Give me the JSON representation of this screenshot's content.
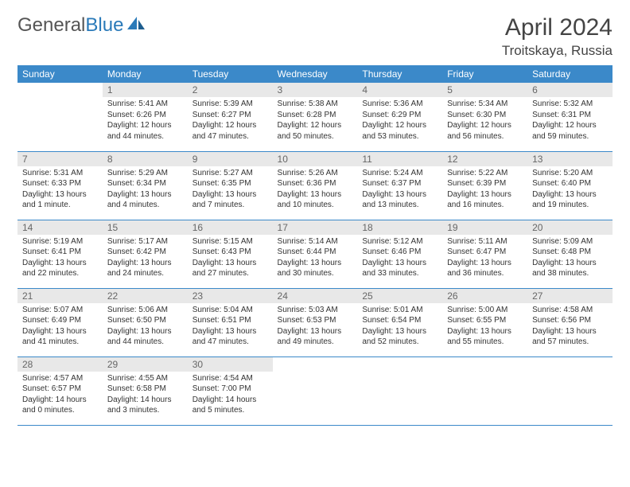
{
  "brand": {
    "part1": "General",
    "part2": "Blue"
  },
  "title": "April 2024",
  "location": "Troitskaya, Russia",
  "colors": {
    "header_bg": "#3b89c9",
    "header_text": "#ffffff",
    "daynum_bg": "#e8e8e8",
    "daynum_text": "#666666",
    "body_text": "#333333",
    "border": "#3b89c9",
    "brand_gray": "#555555",
    "brand_blue": "#2a7ab9"
  },
  "day_headers": [
    "Sunday",
    "Monday",
    "Tuesday",
    "Wednesday",
    "Thursday",
    "Friday",
    "Saturday"
  ],
  "weeks": [
    [
      null,
      {
        "n": "1",
        "sr": "Sunrise: 5:41 AM",
        "ss": "Sunset: 6:26 PM",
        "d1": "Daylight: 12 hours",
        "d2": "and 44 minutes."
      },
      {
        "n": "2",
        "sr": "Sunrise: 5:39 AM",
        "ss": "Sunset: 6:27 PM",
        "d1": "Daylight: 12 hours",
        "d2": "and 47 minutes."
      },
      {
        "n": "3",
        "sr": "Sunrise: 5:38 AM",
        "ss": "Sunset: 6:28 PM",
        "d1": "Daylight: 12 hours",
        "d2": "and 50 minutes."
      },
      {
        "n": "4",
        "sr": "Sunrise: 5:36 AM",
        "ss": "Sunset: 6:29 PM",
        "d1": "Daylight: 12 hours",
        "d2": "and 53 minutes."
      },
      {
        "n": "5",
        "sr": "Sunrise: 5:34 AM",
        "ss": "Sunset: 6:30 PM",
        "d1": "Daylight: 12 hours",
        "d2": "and 56 minutes."
      },
      {
        "n": "6",
        "sr": "Sunrise: 5:32 AM",
        "ss": "Sunset: 6:31 PM",
        "d1": "Daylight: 12 hours",
        "d2": "and 59 minutes."
      }
    ],
    [
      {
        "n": "7",
        "sr": "Sunrise: 5:31 AM",
        "ss": "Sunset: 6:33 PM",
        "d1": "Daylight: 13 hours",
        "d2": "and 1 minute."
      },
      {
        "n": "8",
        "sr": "Sunrise: 5:29 AM",
        "ss": "Sunset: 6:34 PM",
        "d1": "Daylight: 13 hours",
        "d2": "and 4 minutes."
      },
      {
        "n": "9",
        "sr": "Sunrise: 5:27 AM",
        "ss": "Sunset: 6:35 PM",
        "d1": "Daylight: 13 hours",
        "d2": "and 7 minutes."
      },
      {
        "n": "10",
        "sr": "Sunrise: 5:26 AM",
        "ss": "Sunset: 6:36 PM",
        "d1": "Daylight: 13 hours",
        "d2": "and 10 minutes."
      },
      {
        "n": "11",
        "sr": "Sunrise: 5:24 AM",
        "ss": "Sunset: 6:37 PM",
        "d1": "Daylight: 13 hours",
        "d2": "and 13 minutes."
      },
      {
        "n": "12",
        "sr": "Sunrise: 5:22 AM",
        "ss": "Sunset: 6:39 PM",
        "d1": "Daylight: 13 hours",
        "d2": "and 16 minutes."
      },
      {
        "n": "13",
        "sr": "Sunrise: 5:20 AM",
        "ss": "Sunset: 6:40 PM",
        "d1": "Daylight: 13 hours",
        "d2": "and 19 minutes."
      }
    ],
    [
      {
        "n": "14",
        "sr": "Sunrise: 5:19 AM",
        "ss": "Sunset: 6:41 PM",
        "d1": "Daylight: 13 hours",
        "d2": "and 22 minutes."
      },
      {
        "n": "15",
        "sr": "Sunrise: 5:17 AM",
        "ss": "Sunset: 6:42 PM",
        "d1": "Daylight: 13 hours",
        "d2": "and 24 minutes."
      },
      {
        "n": "16",
        "sr": "Sunrise: 5:15 AM",
        "ss": "Sunset: 6:43 PM",
        "d1": "Daylight: 13 hours",
        "d2": "and 27 minutes."
      },
      {
        "n": "17",
        "sr": "Sunrise: 5:14 AM",
        "ss": "Sunset: 6:44 PM",
        "d1": "Daylight: 13 hours",
        "d2": "and 30 minutes."
      },
      {
        "n": "18",
        "sr": "Sunrise: 5:12 AM",
        "ss": "Sunset: 6:46 PM",
        "d1": "Daylight: 13 hours",
        "d2": "and 33 minutes."
      },
      {
        "n": "19",
        "sr": "Sunrise: 5:11 AM",
        "ss": "Sunset: 6:47 PM",
        "d1": "Daylight: 13 hours",
        "d2": "and 36 minutes."
      },
      {
        "n": "20",
        "sr": "Sunrise: 5:09 AM",
        "ss": "Sunset: 6:48 PM",
        "d1": "Daylight: 13 hours",
        "d2": "and 38 minutes."
      }
    ],
    [
      {
        "n": "21",
        "sr": "Sunrise: 5:07 AM",
        "ss": "Sunset: 6:49 PM",
        "d1": "Daylight: 13 hours",
        "d2": "and 41 minutes."
      },
      {
        "n": "22",
        "sr": "Sunrise: 5:06 AM",
        "ss": "Sunset: 6:50 PM",
        "d1": "Daylight: 13 hours",
        "d2": "and 44 minutes."
      },
      {
        "n": "23",
        "sr": "Sunrise: 5:04 AM",
        "ss": "Sunset: 6:51 PM",
        "d1": "Daylight: 13 hours",
        "d2": "and 47 minutes."
      },
      {
        "n": "24",
        "sr": "Sunrise: 5:03 AM",
        "ss": "Sunset: 6:53 PM",
        "d1": "Daylight: 13 hours",
        "d2": "and 49 minutes."
      },
      {
        "n": "25",
        "sr": "Sunrise: 5:01 AM",
        "ss": "Sunset: 6:54 PM",
        "d1": "Daylight: 13 hours",
        "d2": "and 52 minutes."
      },
      {
        "n": "26",
        "sr": "Sunrise: 5:00 AM",
        "ss": "Sunset: 6:55 PM",
        "d1": "Daylight: 13 hours",
        "d2": "and 55 minutes."
      },
      {
        "n": "27",
        "sr": "Sunrise: 4:58 AM",
        "ss": "Sunset: 6:56 PM",
        "d1": "Daylight: 13 hours",
        "d2": "and 57 minutes."
      }
    ],
    [
      {
        "n": "28",
        "sr": "Sunrise: 4:57 AM",
        "ss": "Sunset: 6:57 PM",
        "d1": "Daylight: 14 hours",
        "d2": "and 0 minutes."
      },
      {
        "n": "29",
        "sr": "Sunrise: 4:55 AM",
        "ss": "Sunset: 6:58 PM",
        "d1": "Daylight: 14 hours",
        "d2": "and 3 minutes."
      },
      {
        "n": "30",
        "sr": "Sunrise: 4:54 AM",
        "ss": "Sunset: 7:00 PM",
        "d1": "Daylight: 14 hours",
        "d2": "and 5 minutes."
      },
      null,
      null,
      null,
      null
    ]
  ]
}
